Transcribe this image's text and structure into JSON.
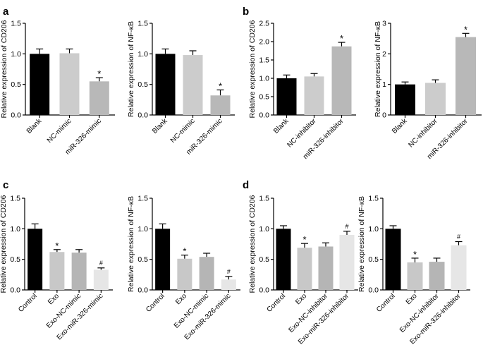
{
  "chart_data": [
    {
      "panel": "a",
      "type": "bar",
      "ylabel": "Relative expression of CD206",
      "ylim": [
        0,
        1.5
      ],
      "yticks": [
        "0.0",
        "0.5",
        "1.0",
        "1.5"
      ],
      "categories": [
        "Blank",
        "NC-mimic",
        "miR-326-mimic"
      ],
      "values": [
        1.0,
        1.01,
        0.55
      ],
      "errors": [
        0.08,
        0.07,
        0.06
      ],
      "marks": [
        "",
        "",
        "*"
      ],
      "colors": [
        "#000000",
        "#cccccc",
        "#b8b8b8"
      ]
    },
    {
      "panel": "",
      "type": "bar",
      "ylabel": "Relative expression of NF-κB",
      "ylim": [
        0,
        1.5
      ],
      "yticks": [
        "0.0",
        "0.5",
        "1.0",
        "1.5"
      ],
      "categories": [
        "Blank",
        "NC-mimic",
        "miR-326-mimic"
      ],
      "values": [
        1.0,
        0.98,
        0.32
      ],
      "errors": [
        0.08,
        0.07,
        0.09
      ],
      "marks": [
        "",
        "",
        "*"
      ],
      "colors": [
        "#000000",
        "#cccccc",
        "#b8b8b8"
      ]
    },
    {
      "panel": "b",
      "type": "bar",
      "ylabel": "Relative expression of CD206",
      "ylim": [
        0,
        2.5
      ],
      "yticks": [
        "0.0",
        "0.5",
        "1.0",
        "1.5",
        "2.0",
        "2.5"
      ],
      "categories": [
        "Blank",
        "NC-inhibitor",
        "miR-326-inhibitor"
      ],
      "values": [
        1.0,
        1.05,
        1.87
      ],
      "errors": [
        0.09,
        0.08,
        0.11
      ],
      "marks": [
        "",
        "",
        "*"
      ],
      "colors": [
        "#000000",
        "#cccccc",
        "#b8b8b8"
      ]
    },
    {
      "panel": "",
      "type": "bar",
      "ylabel": "Relative expression of NF-κB",
      "ylim": [
        0,
        3
      ],
      "yticks": [
        "0",
        "1",
        "2",
        "3"
      ],
      "categories": [
        "Blank",
        "NC-inhibitor",
        "miR-326-inhibitor"
      ],
      "values": [
        1.0,
        1.05,
        2.55
      ],
      "errors": [
        0.08,
        0.1,
        0.12
      ],
      "marks": [
        "",
        "",
        "*"
      ],
      "colors": [
        "#000000",
        "#cccccc",
        "#b8b8b8"
      ]
    },
    {
      "panel": "c",
      "type": "bar",
      "ylabel": "Relative expression of CD206",
      "ylim": [
        0,
        1.5
      ],
      "yticks": [
        "0.0",
        "0.5",
        "1.0",
        "1.5"
      ],
      "categories": [
        "Control",
        "Exo",
        "Exo-NC-mimic",
        "Exo-miR-326-mimic"
      ],
      "values": [
        1.0,
        0.62,
        0.61,
        0.33
      ],
      "errors": [
        0.08,
        0.04,
        0.05,
        0.03
      ],
      "marks": [
        "",
        "*",
        "",
        "#"
      ],
      "colors": [
        "#000000",
        "#c8c8c8",
        "#b5b5b5",
        "#e6e6e6"
      ]
    },
    {
      "panel": "",
      "type": "bar",
      "ylabel": "Relative expression of NF-κB",
      "ylim": [
        0,
        1.5
      ],
      "yticks": [
        "0.0",
        "0.5",
        "1.0",
        "1.5"
      ],
      "categories": [
        "Control",
        "Exo",
        "Exo-NC-mimic",
        "Exo-miR-326-mimic"
      ],
      "values": [
        1.0,
        0.51,
        0.54,
        0.17
      ],
      "errors": [
        0.08,
        0.06,
        0.06,
        0.05
      ],
      "marks": [
        "",
        "*",
        "",
        "#"
      ],
      "colors": [
        "#000000",
        "#c8c8c8",
        "#b5b5b5",
        "#e6e6e6"
      ]
    },
    {
      "panel": "d",
      "type": "bar",
      "ylabel": "Relative expression of CD206",
      "ylim": [
        0,
        1.5
      ],
      "yticks": [
        "0.0",
        "0.5",
        "1.0",
        "1.5"
      ],
      "categories": [
        "Control",
        "Exo",
        "Exo-NC-inhibitor",
        "Exo-miR-326-inhibitor"
      ],
      "values": [
        1.0,
        0.69,
        0.71,
        0.9
      ],
      "errors": [
        0.05,
        0.07,
        0.06,
        0.06
      ],
      "marks": [
        "",
        "*",
        "",
        "#"
      ],
      "colors": [
        "#000000",
        "#c8c8c8",
        "#b5b5b5",
        "#e6e6e6"
      ]
    },
    {
      "panel": "",
      "type": "bar",
      "ylabel": "Relative expression of NF-κB",
      "ylim": [
        0,
        1.5
      ],
      "yticks": [
        "0.0",
        "0.5",
        "1.0",
        "1.5"
      ],
      "categories": [
        "Control",
        "Exo",
        "Exo-NC-inhibitor",
        "Exo-miR-326-inhibitor"
      ],
      "values": [
        1.0,
        0.45,
        0.46,
        0.73
      ],
      "errors": [
        0.05,
        0.07,
        0.06,
        0.06
      ],
      "marks": [
        "",
        "*",
        "",
        "#"
      ],
      "colors": [
        "#000000",
        "#c8c8c8",
        "#b5b5b5",
        "#e6e6e6"
      ]
    }
  ]
}
